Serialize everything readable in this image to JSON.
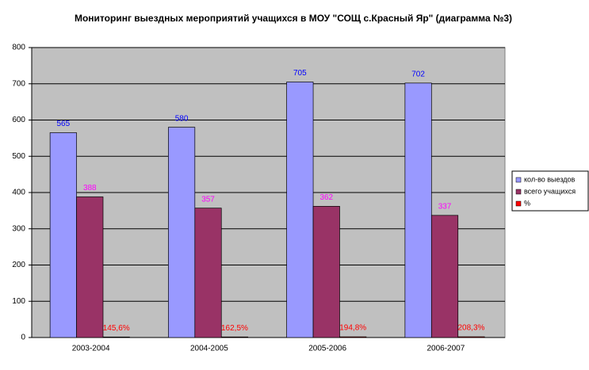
{
  "chart_data": {
    "type": "bar",
    "title": "Мониторинг выездных мероприятий учащихся в МОУ \"СОЩ с.Красный Яр\" (диаграмма №3)",
    "categories": [
      "2003-2004",
      "2004-2005",
      "2005-2006",
      "2006-2007"
    ],
    "series": [
      {
        "name": "кол-во выездов",
        "color": "#9999ff",
        "label_color": "#0000ff",
        "values": [
          565,
          580,
          705,
          702
        ]
      },
      {
        "name": "всего учащихся",
        "color": "#993366",
        "label_color": "#ff00ff",
        "values": [
          388,
          357,
          362,
          337
        ]
      },
      {
        "name": "%",
        "color": "#ff0000",
        "label_color": "#ff0000",
        "values": [
          1.456,
          1.625,
          1.948,
          2.083
        ],
        "value_labels": [
          "145,6%",
          "162,5%",
          "194,8%",
          "208,3%"
        ]
      }
    ],
    "ylim": [
      0,
      800
    ],
    "yticks": [
      0,
      100,
      200,
      300,
      400,
      500,
      600,
      700,
      800
    ],
    "grid": true,
    "legend": "right"
  }
}
